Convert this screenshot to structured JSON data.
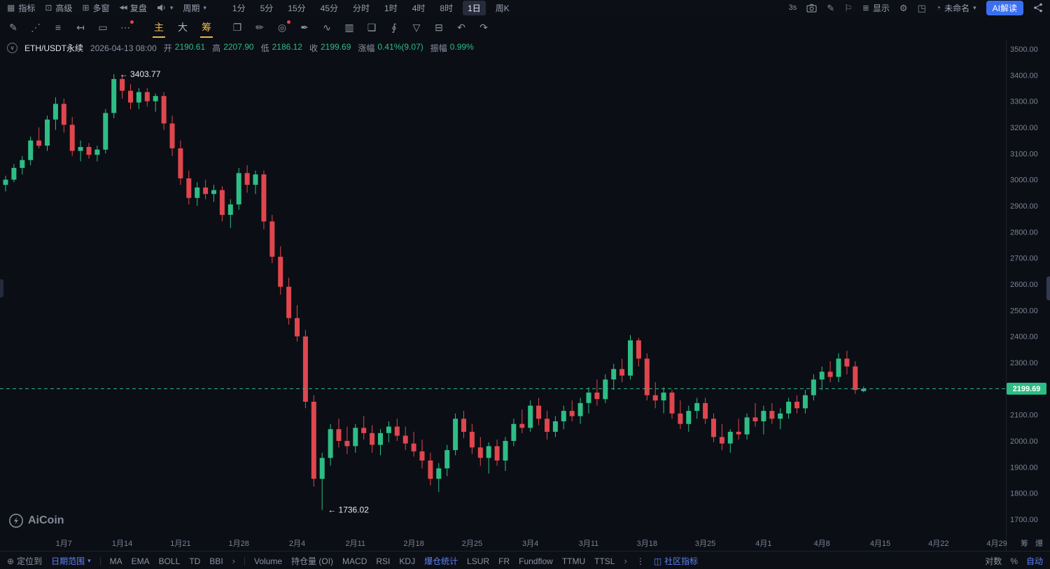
{
  "topbar": {
    "menus": [
      {
        "name": "indicators",
        "label": "指标",
        "glyph": "▦"
      },
      {
        "name": "advanced",
        "label": "高级",
        "glyph": "⊡"
      },
      {
        "name": "multi-window",
        "label": "多窗",
        "glyph": "⊞"
      },
      {
        "name": "replay",
        "label": "复盘",
        "glyph": "◀◀"
      }
    ],
    "period_label": "周期",
    "timeframes": [
      {
        "label": "1分",
        "selected": false
      },
      {
        "label": "5分",
        "selected": false
      },
      {
        "label": "15分",
        "selected": false
      },
      {
        "label": "45分",
        "selected": false
      },
      {
        "label": "分时",
        "selected": false
      },
      {
        "label": "1时",
        "selected": false
      },
      {
        "label": "4时",
        "selected": false
      },
      {
        "label": "8时",
        "selected": false
      },
      {
        "label": "1日",
        "selected": true
      },
      {
        "label": "周K",
        "selected": false
      }
    ],
    "countdown": "3s",
    "display_label": "显示",
    "layout_name": "未命名",
    "ai_button": "AI解读"
  },
  "toolbar2": {
    "draw_tools": [
      {
        "name": "pencil-tool",
        "glyph": "✎",
        "badge": false
      },
      {
        "name": "trendline-tool",
        "glyph": "⋰",
        "badge": false
      },
      {
        "name": "lines-list-tool",
        "glyph": "≡",
        "badge": false
      },
      {
        "name": "ray-tool",
        "glyph": "↤",
        "badge": false
      },
      {
        "name": "rectangle-tool",
        "glyph": "▭",
        "badge": false
      },
      {
        "name": "more-tools",
        "glyph": "⋯",
        "badge": true
      }
    ],
    "chart_tabs": [
      {
        "label": "主",
        "accent": true
      },
      {
        "label": "大",
        "accent": false
      },
      {
        "label": "筹",
        "accent": true
      }
    ],
    "action_tools": [
      {
        "name": "note-edit-tool",
        "glyph": "❐",
        "badge": false
      },
      {
        "name": "brush-tool",
        "glyph": "✏",
        "badge": false
      },
      {
        "name": "zoom-search-tool",
        "glyph": "◎",
        "badge": true
      },
      {
        "name": "pen-tool",
        "glyph": "✒",
        "badge": false
      },
      {
        "name": "wave-tool",
        "glyph": "∿",
        "badge": false
      },
      {
        "name": "briefcase-tool",
        "glyph": "▥",
        "badge": false
      },
      {
        "name": "template-tool",
        "glyph": "❑",
        "badge": false
      },
      {
        "name": "paperclip-tool",
        "glyph": "∮",
        "badge": false
      },
      {
        "name": "filter-tool",
        "glyph": "▽",
        "badge": false
      },
      {
        "name": "trash-tool",
        "glyph": "⊟",
        "badge": false
      },
      {
        "name": "undo-tool",
        "glyph": "↶",
        "badge": false
      },
      {
        "name": "redo-tool",
        "glyph": "↷",
        "badge": false
      }
    ]
  },
  "symbol_bar": {
    "symbol": "ETH/USDT永续",
    "datetime": "2026-04-13 08:00",
    "fields": [
      {
        "label": "开",
        "value": "2190.61"
      },
      {
        "label": "高",
        "value": "2207.90"
      },
      {
        "label": "低",
        "value": "2186.12"
      },
      {
        "label": "收",
        "value": "2199.69"
      },
      {
        "label": "涨幅",
        "value": "0.41%(9.07)"
      },
      {
        "label": "振幅",
        "value": "0.99%"
      }
    ]
  },
  "chart_data": {
    "type": "candlestick",
    "symbol": "ETH/USDT永续",
    "timeframe": "1日",
    "price_axis": {
      "min": 1700,
      "max": 3500,
      "step": 100
    },
    "current_price": 2199.69,
    "last_candle": {
      "open": 2190.61,
      "high": 2207.9,
      "low": 2186.12,
      "close": 2199.69,
      "change_pct": "0.41%",
      "change_abs": 9.07,
      "amplitude_pct": "0.99%"
    },
    "colors": {
      "up": "#2ebd85",
      "down": "#e0464e"
    },
    "x_ticks": [
      {
        "day": 7,
        "label": "1月7"
      },
      {
        "day": 14,
        "label": "1月14"
      },
      {
        "day": 21,
        "label": "1月21"
      },
      {
        "day": 28,
        "label": "1月28"
      },
      {
        "day": 35,
        "label": "2月4"
      },
      {
        "day": 42,
        "label": "2月11"
      },
      {
        "day": 49,
        "label": "2月18"
      },
      {
        "day": 56,
        "label": "2月25"
      },
      {
        "day": 63,
        "label": "3月4"
      },
      {
        "day": 70,
        "label": "3月11"
      },
      {
        "day": 77,
        "label": "3月18"
      },
      {
        "day": 84,
        "label": "3月25"
      },
      {
        "day": 91,
        "label": "4月1"
      },
      {
        "day": 98,
        "label": "4月8"
      },
      {
        "day": 105,
        "label": "4月15"
      },
      {
        "day": 112,
        "label": "4月22"
      },
      {
        "day": 119,
        "label": "4月29"
      }
    ],
    "footer_toggles": [
      {
        "name": "chips",
        "label": "筹"
      },
      {
        "name": "liquidation",
        "label": "爆"
      }
    ],
    "annotations": [
      {
        "name": "high-annotation",
        "text": "← 3403.77",
        "price": 3403.77,
        "candle_index": 13
      },
      {
        "name": "low-annotation",
        "text": "← 1736.02",
        "price": 1736.02,
        "candle_index": 38
      }
    ],
    "candles": [
      [
        2980,
        3015,
        2955,
        3000
      ],
      [
        3000,
        3060,
        2990,
        3045
      ],
      [
        3045,
        3090,
        3020,
        3075
      ],
      [
        3075,
        3165,
        3055,
        3150
      ],
      [
        3150,
        3200,
        3120,
        3130
      ],
      [
        3130,
        3245,
        3110,
        3230
      ],
      [
        3230,
        3315,
        3190,
        3290
      ],
      [
        3290,
        3310,
        3180,
        3210
      ],
      [
        3210,
        3240,
        3090,
        3110
      ],
      [
        3110,
        3150,
        3070,
        3125
      ],
      [
        3125,
        3140,
        3080,
        3095
      ],
      [
        3095,
        3130,
        3070,
        3115
      ],
      [
        3115,
        3270,
        3100,
        3255
      ],
      [
        3255,
        3403.77,
        3235,
        3385
      ],
      [
        3385,
        3400,
        3310,
        3340
      ],
      [
        3340,
        3365,
        3270,
        3295
      ],
      [
        3295,
        3350,
        3270,
        3335
      ],
      [
        3335,
        3350,
        3280,
        3300
      ],
      [
        3300,
        3330,
        3260,
        3320
      ],
      [
        3320,
        3335,
        3190,
        3215
      ],
      [
        3215,
        3245,
        3090,
        3120
      ],
      [
        3120,
        3150,
        2980,
        3005
      ],
      [
        3005,
        3035,
        2905,
        2930
      ],
      [
        2930,
        2990,
        2900,
        2970
      ],
      [
        2970,
        3000,
        2925,
        2945
      ],
      [
        2945,
        2980,
        2915,
        2960
      ],
      [
        2960,
        2975,
        2840,
        2865
      ],
      [
        2865,
        2925,
        2815,
        2905
      ],
      [
        2905,
        3045,
        2885,
        3025
      ],
      [
        3025,
        3055,
        2950,
        2980
      ],
      [
        2980,
        3035,
        2945,
        3020
      ],
      [
        3020,
        3035,
        2810,
        2840
      ],
      [
        2840,
        2865,
        2680,
        2705
      ],
      [
        2705,
        2745,
        2560,
        2590
      ],
      [
        2590,
        2625,
        2445,
        2470
      ],
      [
        2470,
        2520,
        2380,
        2400
      ],
      [
        2400,
        2425,
        2125,
        2150
      ],
      [
        2150,
        2175,
        1825,
        1855
      ],
      [
        1855,
        1955,
        1736.02,
        1935
      ],
      [
        1935,
        2065,
        1905,
        2045
      ],
      [
        2045,
        2085,
        1975,
        2000
      ],
      [
        2000,
        2055,
        1950,
        1980
      ],
      [
        1980,
        2065,
        1955,
        2050
      ],
      [
        2050,
        2095,
        2005,
        2030
      ],
      [
        2030,
        2060,
        1955,
        1985
      ],
      [
        1985,
        2045,
        1945,
        2030
      ],
      [
        2030,
        2075,
        1995,
        2055
      ],
      [
        2055,
        2085,
        2000,
        2020
      ],
      [
        2020,
        2055,
        1965,
        1990
      ],
      [
        1990,
        2035,
        1940,
        1960
      ],
      [
        1960,
        2005,
        1895,
        1925
      ],
      [
        1925,
        1955,
        1830,
        1855
      ],
      [
        1855,
        1915,
        1805,
        1895
      ],
      [
        1895,
        1985,
        1865,
        1965
      ],
      [
        1965,
        2105,
        1945,
        2085
      ],
      [
        2085,
        2115,
        2010,
        2035
      ],
      [
        2035,
        2065,
        1950,
        1975
      ],
      [
        1975,
        2015,
        1905,
        1935
      ],
      [
        1935,
        1995,
        1875,
        1980
      ],
      [
        1980,
        2005,
        1905,
        1925
      ],
      [
        1925,
        2015,
        1885,
        2000
      ],
      [
        2000,
        2085,
        1980,
        2065
      ],
      [
        2065,
        2120,
        2030,
        2050
      ],
      [
        2050,
        2155,
        2035,
        2135
      ],
      [
        2135,
        2165,
        2060,
        2085
      ],
      [
        2085,
        2115,
        2005,
        2035
      ],
      [
        2035,
        2095,
        2015,
        2075
      ],
      [
        2075,
        2135,
        2045,
        2115
      ],
      [
        2115,
        2155,
        2075,
        2095
      ],
      [
        2095,
        2165,
        2065,
        2145
      ],
      [
        2145,
        2205,
        2105,
        2185
      ],
      [
        2185,
        2235,
        2135,
        2160
      ],
      [
        2160,
        2255,
        2145,
        2235
      ],
      [
        2235,
        2295,
        2195,
        2275
      ],
      [
        2275,
        2315,
        2225,
        2250
      ],
      [
        2250,
        2405,
        2235,
        2385
      ],
      [
        2385,
        2395,
        2285,
        2315
      ],
      [
        2315,
        2335,
        2155,
        2175
      ],
      [
        2175,
        2225,
        2125,
        2155
      ],
      [
        2155,
        2205,
        2105,
        2185
      ],
      [
        2185,
        2195,
        2085,
        2105
      ],
      [
        2105,
        2155,
        2045,
        2065
      ],
      [
        2065,
        2135,
        2035,
        2115
      ],
      [
        2115,
        2165,
        2085,
        2145
      ],
      [
        2145,
        2165,
        2065,
        2085
      ],
      [
        2085,
        2105,
        1995,
        2015
      ],
      [
        2015,
        2065,
        1965,
        1990
      ],
      [
        1990,
        2045,
        1955,
        2035
      ],
      [
        2035,
        2085,
        2005,
        2025
      ],
      [
        2025,
        2105,
        2005,
        2090
      ],
      [
        2090,
        2145,
        2055,
        2075
      ],
      [
        2075,
        2135,
        2025,
        2115
      ],
      [
        2115,
        2145,
        2065,
        2085
      ],
      [
        2085,
        2125,
        2045,
        2105
      ],
      [
        2105,
        2165,
        2085,
        2150
      ],
      [
        2150,
        2175,
        2105,
        2125
      ],
      [
        2125,
        2195,
        2105,
        2175
      ],
      [
        2175,
        2255,
        2155,
        2235
      ],
      [
        2235,
        2285,
        2195,
        2265
      ],
      [
        2265,
        2305,
        2225,
        2245
      ],
      [
        2245,
        2335,
        2225,
        2315
      ],
      [
        2315,
        2345,
        2255,
        2285
      ],
      [
        2285,
        2305,
        2180,
        2195
      ],
      [
        2190.61,
        2207.9,
        2186.12,
        2199.69
      ]
    ]
  },
  "watermark": "AiCoin",
  "bottom_bar": {
    "locate_label": "定位到",
    "date_range_label": "日期范围",
    "ma_group": [
      "MA",
      "EMA",
      "BOLL",
      "TD",
      "BBI"
    ],
    "indicator_group": [
      "Volume",
      "持仓量 (OI)",
      "MACD",
      "RSI",
      "KDJ",
      "爆仓统计",
      "LSUR",
      "FR",
      "Fundflow",
      "TTMU",
      "TTSL"
    ],
    "selected_indicator": "爆仓统计",
    "community_label": "社区指标",
    "axis_options": [
      {
        "label": "对数",
        "active": false
      },
      {
        "label": "%",
        "active": false
      },
      {
        "label": "自动",
        "active": true
      }
    ]
  },
  "colors": {
    "bg": "#0b0e15",
    "up": "#2ebd85",
    "down": "#e0464e",
    "accent_blue": "#3a6ff2",
    "accent_yellow": "#e9b84c",
    "text_dim": "#8b92a2"
  }
}
